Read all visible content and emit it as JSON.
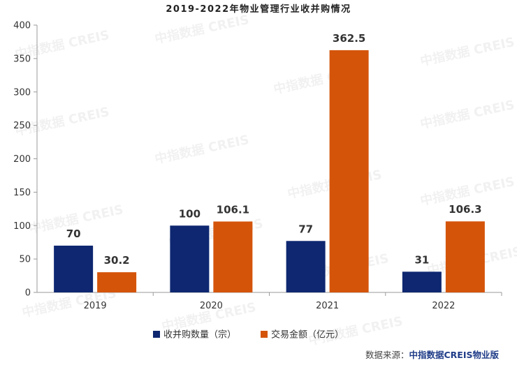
{
  "chart_data": {
    "type": "bar",
    "title": "2019-2022年物业管理行业收并购情况",
    "categories": [
      "2019",
      "2020",
      "2021",
      "2022"
    ],
    "series": [
      {
        "name": "收并购数量（宗）",
        "values": [
          70,
          100,
          77,
          31
        ],
        "labels": [
          "70",
          "100",
          "77",
          "31"
        ],
        "color": "#0e2770"
      },
      {
        "name": "交易金额（亿元）",
        "values": [
          30.2,
          106.1,
          362.5,
          106.3
        ],
        "labels": [
          "30.2",
          "106.1",
          "362.5",
          "106.3"
        ],
        "color": "#d4540a"
      }
    ],
    "ylim": [
      0,
      400
    ],
    "yticks": [
      0,
      50,
      100,
      150,
      200,
      250,
      300,
      350,
      400
    ],
    "grid": false,
    "legend_position": "bottom"
  },
  "source": {
    "label": "数据来源：",
    "brand": "中指数据CREIS物业版"
  },
  "watermark": {
    "text": "中指数据 CREIS"
  }
}
